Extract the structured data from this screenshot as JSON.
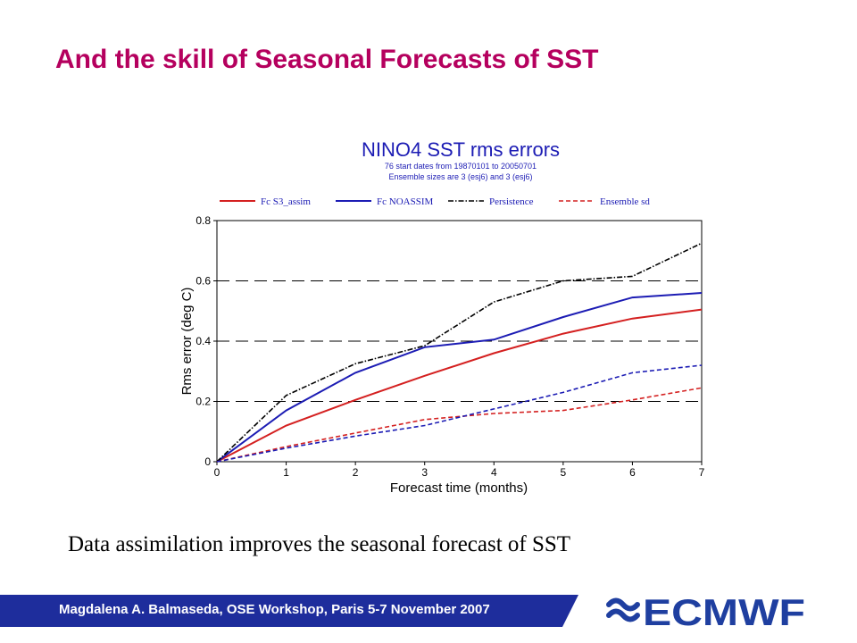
{
  "slide": {
    "title": "And the skill of Seasonal Forecasts of SST",
    "caption": "Data assimilation improves the seasonal forecast of SST",
    "footer": "Magdalena A. Balmaseda, OSE Workshop, Paris 5-7 November 2007",
    "logo_text": "ECMWF"
  },
  "colors": {
    "title": "#b5005e",
    "footer_band": "#1e2d9c",
    "logo": "#1f3fa0",
    "series_red": "#d42020",
    "series_blue": "#1c1cb4",
    "series_black": "#000000"
  },
  "chart_data": {
    "type": "line",
    "title": "NINO4 SST rms errors",
    "subtitle_lines": [
      "76 start dates from 19870101 to 20050701",
      "Ensemble sizes are  3 (esj6)  and  3 (esj6)"
    ],
    "xlabel": "Forecast time (months)",
    "ylabel": "Rms error (deg C)",
    "xlim": [
      0,
      7
    ],
    "ylim": [
      0,
      0.8
    ],
    "x_ticks": [
      "0",
      "1",
      "2",
      "3",
      "4",
      "5",
      "6",
      "7"
    ],
    "y_ticks": [
      "0",
      "0.2",
      "0.4",
      "0.6",
      "0.8"
    ],
    "grid": "horizontal dashed at 0.2, 0.4, 0.6",
    "legend_position": "top",
    "x": [
      0,
      1,
      2,
      3,
      4,
      5,
      6,
      7
    ],
    "series": [
      {
        "name": "Fc S3_assim",
        "color": "#d42020",
        "dash": "solid",
        "values": [
          0,
          0.12,
          0.205,
          0.285,
          0.36,
          0.425,
          0.475,
          0.505
        ]
      },
      {
        "name": "Fc NOASSIM",
        "color": "#1c1cb4",
        "dash": "solid",
        "values": [
          0,
          0.17,
          0.295,
          0.38,
          0.405,
          0.48,
          0.545,
          0.56
        ]
      },
      {
        "name": "Persistence",
        "color": "#000000",
        "dash": "dashdot",
        "values": [
          0,
          0.22,
          0.325,
          0.385,
          0.53,
          0.6,
          0.615,
          0.725
        ]
      },
      {
        "name": "Ensemble sd",
        "color": "#d42020",
        "dash": "dashed",
        "values": [
          0,
          0.05,
          0.095,
          0.14,
          0.16,
          0.17,
          0.205,
          0.245
        ]
      },
      {
        "color": "#1c1cb4",
        "dash": "dashed",
        "values": [
          0,
          0.045,
          0.085,
          0.12,
          0.175,
          0.23,
          0.295,
          0.32
        ]
      }
    ]
  }
}
